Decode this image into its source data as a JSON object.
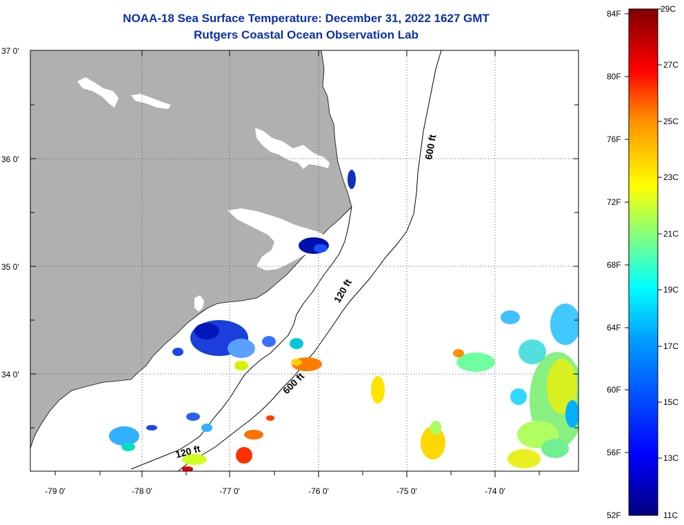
{
  "header": {
    "title_line1": "NOAA-18 Sea Surface Temperature:  December 31, 2022 1627 GMT",
    "title_line2": "Rutgers Coastal Ocean Observation Lab"
  },
  "map": {
    "lat_labels": [
      "37 0'",
      "36 0'",
      "35 0'",
      "34 0'"
    ],
    "lon_labels": [
      "-79 0'",
      "-78 0'",
      "-77 0'",
      "-76 0'",
      "-75 0'",
      "-74 0'"
    ],
    "contour_labels": [
      "600 ft",
      "120 ft",
      "600 ft",
      "120 ft"
    ],
    "land_color": "#b0b0b0",
    "ocean_color": "#ffffff"
  },
  "colorbar": {
    "fahrenheit_labels": [
      "84F",
      "80F",
      "76F",
      "72F",
      "68F",
      "64F",
      "60F",
      "56F",
      "52F"
    ],
    "celsius_labels": [
      "29C",
      "27C",
      "25C",
      "23C",
      "21C",
      "19C",
      "17C",
      "15C",
      "13C",
      "11C"
    ],
    "range_c": [
      11,
      29
    ],
    "colors": [
      "#00007f",
      "#0000ff",
      "#0080ff",
      "#00ffff",
      "#80ff80",
      "#ffff00",
      "#ff8000",
      "#ff0000",
      "#7f0000"
    ]
  }
}
